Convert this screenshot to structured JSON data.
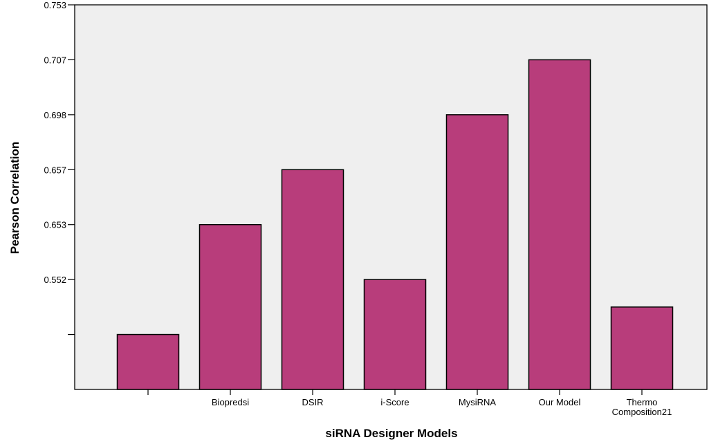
{
  "chart_data": {
    "type": "bar",
    "title": "",
    "xlabel": "siRNA Designer Models",
    "ylabel": "Pearson Correlation",
    "categories": [
      {
        "line1": "",
        "line2": ""
      },
      {
        "line1": "Biopredsi",
        "line2": ""
      },
      {
        "line1": "DSIR",
        "line2": ""
      },
      {
        "line1": "i-Score",
        "line2": ""
      },
      {
        "line1": "MysiRNA",
        "line2": ""
      },
      {
        "line1": "Our Model",
        "line2": ""
      },
      {
        "line1": "Thermo",
        "line2": "Composition21"
      }
    ],
    "y_ticks": [
      "",
      "0.552",
      "0.653",
      "0.657",
      "0.698",
      "0.707",
      "0.753"
    ],
    "values": [
      1,
      3,
      4,
      2,
      5,
      6,
      1.5
    ],
    "ylim": [
      0,
      7
    ],
    "grid": false,
    "legend": "none",
    "colors": {
      "plot_background": "#efefef",
      "bar_fill": "#b83d7b",
      "bar_stroke": "#000000"
    }
  }
}
